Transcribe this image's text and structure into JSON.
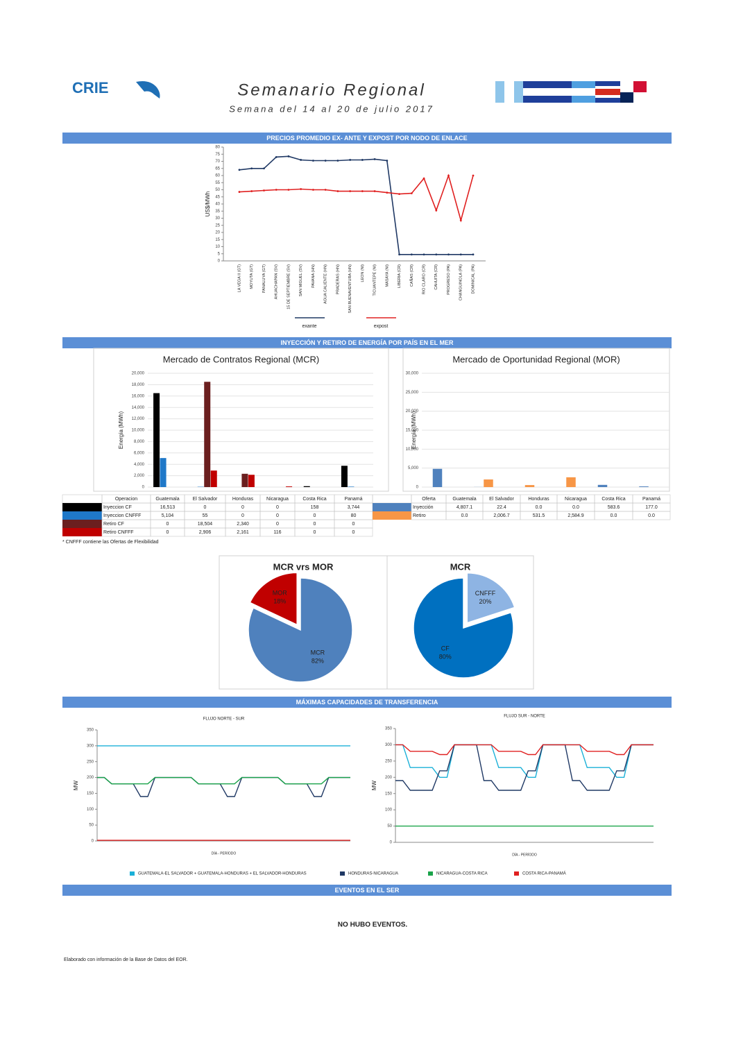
{
  "header": {
    "logo": "CRIE",
    "title": "Semanario Regional",
    "subtitle": "Semana del 14 al 20 de julio 2017"
  },
  "sections": [
    "PRECIOS PROMEDIO EX- ANTE Y EXPOST POR NODO DE ENLACE",
    "INYECCIÓN Y RETIRO DE ENERGÍA POR PAÍS EN EL MER",
    "MÁXIMAS CAPACIDADES DE TRANSFERENCIA",
    "EVENTOS EN EL SER"
  ],
  "mcr_note": "* CNFFF contiene las Ofertas de Flexibilidad",
  "events": "NO HUBO EVENTOS.",
  "footer": "Elaborado con información de la Base de Datos del EOR.",
  "transfer_legend": [
    "GUATEMALA-EL SALVADOR + GUATEMALA-HONDURAS + EL SALVADOR-HONDURAS",
    "HONDURAS-NICARAGUA",
    "NICARAGUA-COSTA RICA",
    "COSTA RICA-PANAMÁ"
  ],
  "chart_data": [
    {
      "type": "line",
      "ylabel": "US$/MWh",
      "legend": "bottom",
      "categories": [
        "LA VEGA II (GT)",
        "MOYUTA (GT)",
        "PANALUYA (GT)",
        "AHUACHAPAN (SV)",
        "15 DE SEPTIEMBRE (SV)",
        "SAN MIGUEL (SV)",
        "PAVANA (HN)",
        "AGUA CALIENTE (HN)",
        "PRADERAS (HN)",
        "SAN BUENAVENTURA (HN)",
        "LEON (NI)",
        "TICUANTEPE (NI)",
        "MASAYA (NI)",
        "LIBERIA (CR)",
        "CAÑAS (CR)",
        "RIO CLARO (CR)",
        "CAHUITA (CR)",
        "PROGRESO (PA)",
        "CHANGUINOLA (PA)",
        "DOMINICAL (PA)"
      ],
      "series": [
        {
          "name": "exante",
          "color": "#1f3864",
          "values": [
            64,
            65,
            65,
            73,
            73.5,
            71,
            70.5,
            70.5,
            70.5,
            71,
            71,
            71.5,
            70.5,
            4.5,
            4.5,
            4.5,
            4.5,
            4.5,
            4.5,
            4.5
          ]
        },
        {
          "name": "expost",
          "color": "#e02020",
          "values": [
            48.5,
            49,
            49.5,
            50,
            50,
            50.5,
            50,
            50,
            49,
            49,
            49,
            49,
            48,
            47,
            47.5,
            58,
            35.5,
            60,
            28.5,
            60
          ]
        }
      ],
      "ylim": [
        0,
        80
      ],
      "yticks": [
        0,
        5,
        10,
        15,
        20,
        25,
        30,
        35,
        40,
        45,
        50,
        55,
        60,
        65,
        70,
        75,
        80
      ],
      "grid": false
    },
    {
      "type": "bar",
      "title": "Mercado de Contratos Regional (MCR)",
      "ylabel": "Energía (MWh)",
      "table_header": "Operacion",
      "categories": [
        "Guatemala",
        "El Salvador",
        "Honduras",
        "Nicaragua",
        "Costa Rica",
        "Panamá"
      ],
      "series": [
        {
          "name": "Inyeccion CF",
          "color": "#000000",
          "values": [
            16513,
            0,
            0,
            0,
            158,
            3744
          ],
          "value_labels": [
            "16,513",
            "0",
            "0",
            "0",
            "158",
            "3,744"
          ]
        },
        {
          "name": "Inyeccion CNFFF",
          "color": "#1f78c8",
          "values": [
            5104,
            55,
            0,
            0,
            0,
            80
          ],
          "value_labels": [
            "5,104",
            "55",
            "0",
            "0",
            "0",
            "80"
          ]
        },
        {
          "name": "Retiro CF",
          "color": "#6b1f1f",
          "values": [
            0,
            18504,
            2340,
            0,
            0,
            0
          ],
          "value_labels": [
            "0",
            "18,504",
            "2,340",
            "0",
            "0",
            "0"
          ]
        },
        {
          "name": "Retiro CNFFF",
          "color": "#c00000",
          "values": [
            0,
            2906,
            2161,
            116,
            0,
            0
          ],
          "value_labels": [
            "0",
            "2,906",
            "2,161",
            "116",
            "0",
            "0"
          ]
        }
      ],
      "ylim": [
        0,
        20000
      ],
      "yticks": [
        0,
        {
          "value": 2000,
          "label": "2,000"
        },
        {
          "value": 4000,
          "label": "4,000"
        },
        {
          "value": 6000,
          "label": "6,000"
        },
        {
          "value": 8000,
          "label": "8,000"
        },
        {
          "value": 10000,
          "label": "10,000"
        },
        {
          "value": 12000,
          "label": "12,000"
        },
        {
          "value": 14000,
          "label": "14,000"
        },
        {
          "value": 16000,
          "label": "16,000"
        },
        {
          "value": 18000,
          "label": "18,000"
        },
        {
          "value": 20000,
          "label": "20,000"
        }
      ],
      "grid": true
    },
    {
      "type": "bar",
      "title": "Mercado de Oportunidad Regional (MOR)",
      "ylabel": "Energía (MWh)",
      "table_header": "Oferta",
      "categories": [
        "Guatemala",
        "El Salvador",
        "Honduras",
        "Nicaragua",
        "Costa Rica",
        "Panamá"
      ],
      "series": [
        {
          "name": "Inyección",
          "color": "#4f81bd",
          "values": [
            4807.1,
            22.4,
            0,
            0,
            583.6,
            177
          ],
          "value_labels": [
            "4,807.1",
            "22.4",
            "0.0",
            "0.0",
            "583.6",
            "177.0"
          ]
        },
        {
          "name": "Retiro",
          "color": "#f79646",
          "values": [
            0,
            2006.7,
            531.5,
            2584.9,
            0,
            0
          ],
          "value_labels": [
            "0.0",
            "2,006.7",
            "531.5",
            "2,584.9",
            "0.0",
            "0.0"
          ]
        }
      ],
      "ylim": [
        0,
        30000
      ],
      "yticks": [
        0,
        {
          "value": 5000,
          "label": "5,000"
        },
        {
          "value": 10000,
          "label": "10,000"
        },
        {
          "value": 15000,
          "label": "15,000"
        },
        {
          "value": 20000,
          "label": "20,000"
        },
        {
          "value": 25000,
          "label": "25,000"
        },
        {
          "value": 30000,
          "label": "30,000"
        }
      ],
      "grid": true
    },
    {
      "type": "pie",
      "title": "MCR vrs MOR",
      "categories": [
        "MCR",
        "MOR"
      ],
      "values": [
        82,
        18
      ],
      "value_labels": [
        "82%",
        "18%"
      ],
      "colors": [
        "#4f81bd",
        "#c00000"
      ],
      "explode": [
        false,
        true
      ]
    },
    {
      "type": "pie",
      "title": "MCR",
      "categories": [
        "CNFFF",
        "CF"
      ],
      "values": [
        20,
        80
      ],
      "value_labels": [
        "20%",
        "80%"
      ],
      "colors": [
        "#8eb4e3",
        "#0070c0"
      ],
      "explode": [
        true,
        false
      ]
    },
    {
      "type": "line",
      "title": "FLUJO NORTE - SUR",
      "ylabel": "MW",
      "xlabel": "DÍA - PERÍODO",
      "series": [
        {
          "color": "#1ab0d8",
          "values": [
            300,
            300,
            300,
            300,
            300,
            300,
            300,
            300,
            300,
            300,
            300,
            300,
            300,
            300,
            300,
            300,
            300,
            300,
            300,
            300,
            300,
            300,
            300,
            300,
            300,
            300,
            300,
            300,
            300,
            300,
            300,
            300,
            300,
            300,
            300,
            300
          ]
        },
        {
          "color": "#1f3864",
          "values": [
            200,
            200,
            180,
            180,
            180,
            180,
            140,
            140,
            200,
            200,
            200,
            200,
            200,
            200,
            180,
            180,
            180,
            180,
            140,
            140,
            200,
            200,
            200,
            200,
            200,
            200,
            180,
            180,
            180,
            180,
            140,
            140,
            200,
            200,
            200,
            200
          ]
        },
        {
          "color": "#1aa34a",
          "values": [
            200,
            200,
            180,
            180,
            180,
            180,
            180,
            180,
            200,
            200,
            200,
            200,
            200,
            200,
            180,
            180,
            180,
            180,
            180,
            180,
            200,
            200,
            200,
            200,
            200,
            200,
            180,
            180,
            180,
            180,
            180,
            180,
            200,
            200,
            200,
            200
          ]
        },
        {
          "color": "#e02020",
          "values": [
            2,
            2,
            2,
            2,
            2,
            2,
            2,
            2,
            2,
            2,
            2,
            2,
            2,
            2,
            2,
            2,
            2,
            2,
            2,
            2,
            2,
            2,
            2,
            2,
            2,
            2,
            2,
            2,
            2,
            2,
            2,
            2,
            2,
            2,
            2,
            2
          ]
        }
      ],
      "ylim": [
        0,
        350
      ],
      "yticks": [
        0,
        50,
        100,
        150,
        200,
        250,
        300,
        350
      ],
      "grid": false
    },
    {
      "type": "line",
      "title": "FLUJO SUR - NORTE",
      "ylabel": "MW",
      "xlabel": "DÍA - PERÍODO",
      "series": [
        {
          "color": "#1ab0d8",
          "values": [
            300,
            300,
            230,
            230,
            230,
            230,
            200,
            200,
            300,
            300,
            300,
            300,
            300,
            300,
            230,
            230,
            230,
            230,
            200,
            200,
            300,
            300,
            300,
            300,
            300,
            300,
            230,
            230,
            230,
            230,
            200,
            200,
            300,
            300,
            300,
            300
          ]
        },
        {
          "color": "#1f3864",
          "values": [
            190,
            190,
            160,
            160,
            160,
            160,
            220,
            220,
            300,
            300,
            300,
            300,
            190,
            190,
            160,
            160,
            160,
            160,
            220,
            220,
            300,
            300,
            300,
            300,
            190,
            190,
            160,
            160,
            160,
            160,
            220,
            220,
            300,
            300,
            300,
            300
          ]
        },
        {
          "color": "#1aa34a",
          "values": [
            50,
            50,
            50,
            50,
            50,
            50,
            50,
            50,
            50,
            50,
            50,
            50,
            50,
            50,
            50,
            50,
            50,
            50,
            50,
            50,
            50,
            50,
            50,
            50,
            50,
            50,
            50,
            50,
            50,
            50,
            50,
            50,
            50,
            50,
            50,
            50
          ]
        },
        {
          "color": "#e02020",
          "values": [
            300,
            300,
            280,
            280,
            280,
            280,
            270,
            270,
            300,
            300,
            300,
            300,
            300,
            300,
            280,
            280,
            280,
            280,
            270,
            270,
            300,
            300,
            300,
            300,
            300,
            300,
            280,
            280,
            280,
            280,
            270,
            270,
            300,
            300,
            300,
            300
          ]
        }
      ],
      "ylim": [
        0,
        350
      ],
      "yticks": [
        0,
        50,
        100,
        150,
        200,
        250,
        300,
        350
      ],
      "grid": false
    }
  ]
}
